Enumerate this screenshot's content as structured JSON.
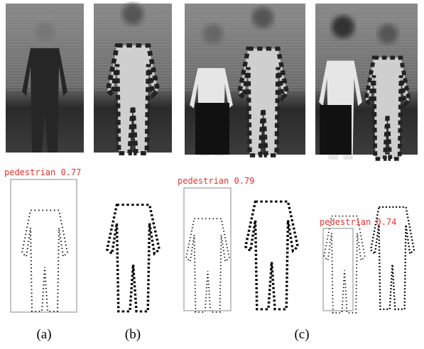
{
  "panels": [
    {
      "label": "(a)"
    },
    {
      "label": "(b)"
    },
    {
      "label": "(c)"
    }
  ],
  "detections": [
    {
      "text": "pedestrian 0.77"
    },
    {
      "text": "pedestrian 0.79"
    },
    {
      "text": "pedestrian 0.74"
    }
  ]
}
